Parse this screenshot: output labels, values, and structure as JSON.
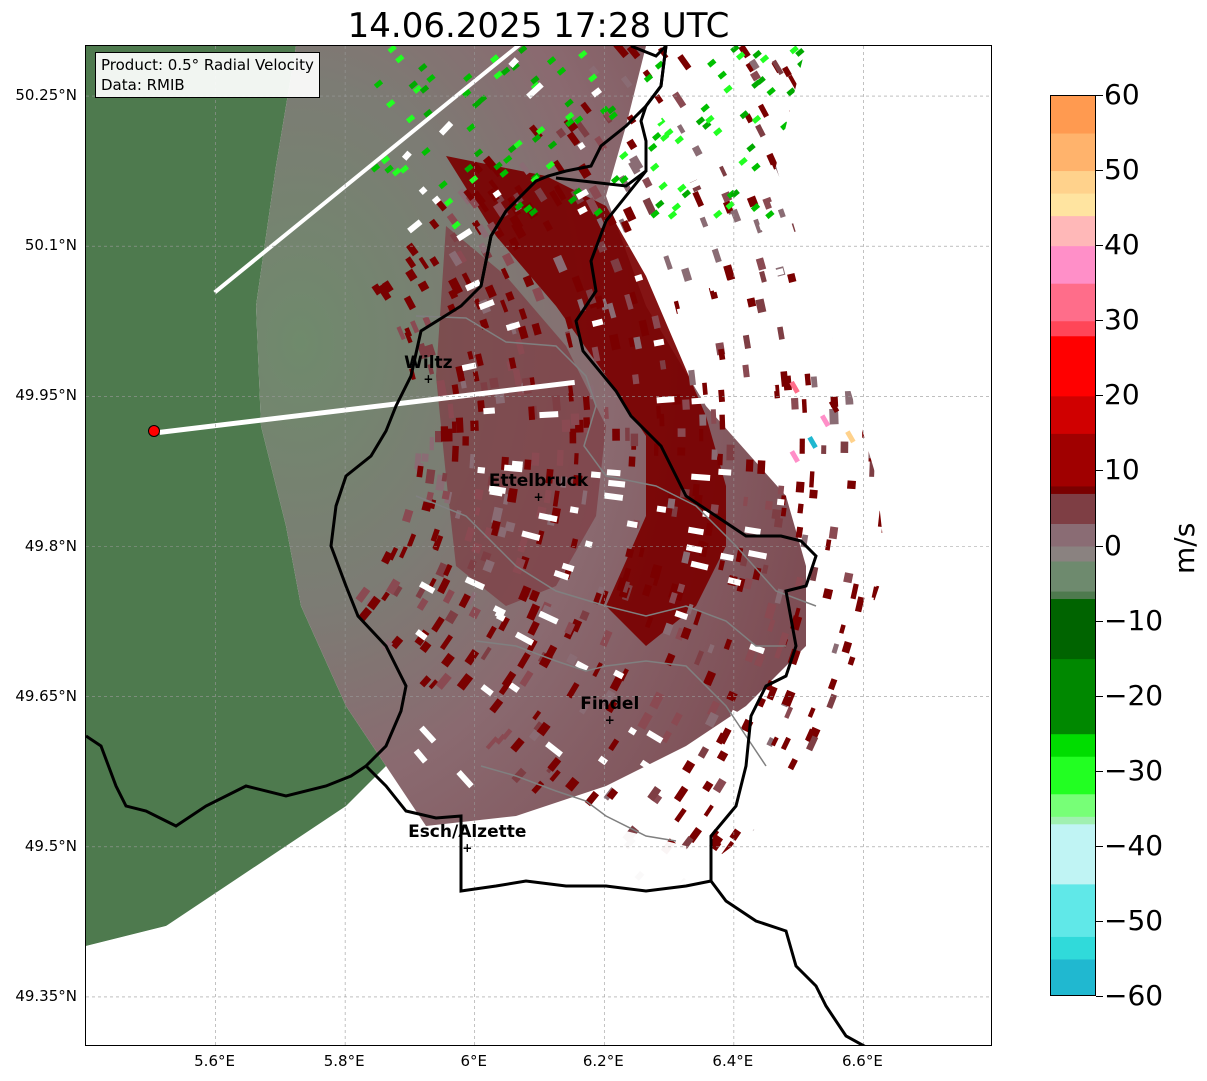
{
  "title": "14.06.2025 17:28 UTC",
  "info": {
    "product": "Product: 0.5° Radial Velocity",
    "source": "Data: RMIB"
  },
  "map": {
    "lon_range": [
      5.4,
      6.8
    ],
    "lat_range": [
      49.3,
      50.3
    ],
    "lon_ticks": [
      {
        "value": 5.6,
        "label": "5.6°E"
      },
      {
        "value": 5.8,
        "label": "5.8°E"
      },
      {
        "value": 6.0,
        "label": "6°E"
      },
      {
        "value": 6.2,
        "label": "6.2°E"
      },
      {
        "value": 6.4,
        "label": "6.4°E"
      },
      {
        "value": 6.6,
        "label": "6.6°E"
      }
    ],
    "lat_ticks": [
      {
        "value": 50.25,
        "label": "50.25°N"
      },
      {
        "value": 50.1,
        "label": "50.1°N"
      },
      {
        "value": 49.95,
        "label": "49.95°N"
      },
      {
        "value": 49.8,
        "label": "49.8°N"
      },
      {
        "value": 49.65,
        "label": "49.65°N"
      },
      {
        "value": 49.5,
        "label": "49.5°N"
      },
      {
        "value": 49.35,
        "label": "49.35°N"
      }
    ],
    "gridlines": true,
    "radar_site": {
      "lon": 5.506,
      "lat": 49.914
    },
    "cities": [
      {
        "name": "Wiltz",
        "lon": 5.93,
        "lat": 49.966
      },
      {
        "name": "Ettelbruck",
        "lon": 6.1,
        "lat": 49.848
      },
      {
        "name": "Findel",
        "lon": 6.21,
        "lat": 49.626
      },
      {
        "name": "Esch/Alzette",
        "lon": 5.99,
        "lat": 49.498
      }
    ],
    "colors": {
      "approaching": "#4e7a4e",
      "near_zero": "#8b7878",
      "receding": "#7a0000",
      "border": "#000000",
      "district": "#808080"
    }
  },
  "colorbar": {
    "label": "m/s",
    "min": -60,
    "max": 60,
    "ticks": [
      {
        "value": 60,
        "label": "60"
      },
      {
        "value": 50,
        "label": "50"
      },
      {
        "value": 40,
        "label": "40"
      },
      {
        "value": 30,
        "label": "30"
      },
      {
        "value": 20,
        "label": "20"
      },
      {
        "value": 10,
        "label": "10"
      },
      {
        "value": 0,
        "label": "0"
      },
      {
        "value": -10,
        "label": "−10"
      },
      {
        "value": -20,
        "label": "−20"
      },
      {
        "value": -30,
        "label": "−30"
      },
      {
        "value": -40,
        "label": "−40"
      },
      {
        "value": -50,
        "label": "−50"
      },
      {
        "value": -60,
        "label": "−60"
      }
    ],
    "stops": [
      {
        "value": 60,
        "color": "#ff9a50"
      },
      {
        "value": 55,
        "color": "#ffb36c"
      },
      {
        "value": 50,
        "color": "#ffd28c"
      },
      {
        "value": 47,
        "color": "#ffe4a0"
      },
      {
        "value": 44,
        "color": "#ffb8b8"
      },
      {
        "value": 40,
        "color": "#ff8fc8"
      },
      {
        "value": 35,
        "color": "#ff6d8a"
      },
      {
        "value": 30,
        "color": "#ff4658"
      },
      {
        "value": 28,
        "color": "#ff0000"
      },
      {
        "value": 20,
        "color": "#d00000"
      },
      {
        "value": 15,
        "color": "#a00000"
      },
      {
        "value": 8,
        "color": "#7a0000"
      },
      {
        "value": 7,
        "color": "#7e3e44"
      },
      {
        "value": 3,
        "color": "#8a6c74"
      },
      {
        "value": 0,
        "color": "#8a8280"
      },
      {
        "value": -2,
        "color": "#6e8a6e"
      },
      {
        "value": -6,
        "color": "#4e7a4e"
      },
      {
        "value": -7,
        "color": "#006400"
      },
      {
        "value": -15,
        "color": "#008800"
      },
      {
        "value": -25,
        "color": "#00dd00"
      },
      {
        "value": -28,
        "color": "#22ff22"
      },
      {
        "value": -33,
        "color": "#77ff77"
      },
      {
        "value": -36,
        "color": "#a0f0b0"
      },
      {
        "value": -37,
        "color": "#c0f4f4"
      },
      {
        "value": -45,
        "color": "#60e8e8"
      },
      {
        "value": -52,
        "color": "#30dada"
      },
      {
        "value": -55,
        "color": "#20b8d0"
      },
      {
        "value": -60,
        "color": "#1e7ec8"
      }
    ]
  }
}
